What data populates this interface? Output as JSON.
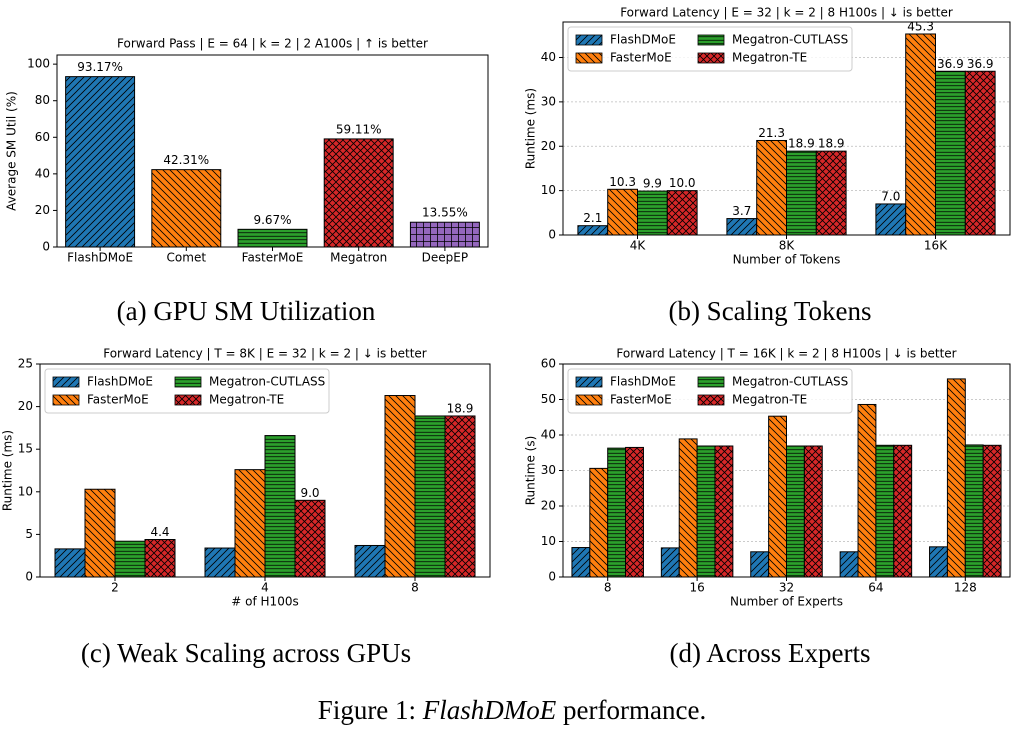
{
  "chart_data": [
    {
      "type": "bar",
      "title": "Forward Pass | E = 64 | k = 2 | 2 A100s | ↑ is better",
      "caption": "(a) GPU SM Utilization",
      "ylabel": "Average SM Util (%)",
      "categories": [
        "FlashDMoE",
        "Comet",
        "FasterMoE",
        "Megatron",
        "DeepEP"
      ],
      "values": [
        93.17,
        42.31,
        9.67,
        59.11,
        13.55
      ],
      "value_labels": [
        "93.17%",
        "42.31%",
        "9.67%",
        "59.11%",
        "13.55%"
      ],
      "colors": [
        "#1f77b4",
        "#ff7f0e",
        "#2ca02c",
        "#d62728",
        "#9467bd"
      ],
      "hatches": [
        "diag",
        "back",
        "horiz",
        "cross",
        "grid"
      ],
      "ylim": [
        0,
        105
      ],
      "yticks": [
        0,
        20,
        40,
        60,
        80,
        100
      ],
      "grid": false
    },
    {
      "type": "grouped_bar",
      "title": "Forward Latency | E = 32 | k = 2 | 8 H100s | ↓ is better",
      "caption": "(b) Scaling Tokens",
      "xlabel": "Number of Tokens",
      "ylabel": "Runtime (ms)",
      "categories": [
        "4K",
        "8K",
        "16K"
      ],
      "series": [
        {
          "name": "FlashDMoE",
          "color": "#1f77b4",
          "hatch": "diag",
          "values": [
            2.1,
            3.7,
            7.0
          ],
          "value_labels": [
            "2.1",
            "3.7",
            "7.0"
          ]
        },
        {
          "name": "FasterMoE",
          "color": "#ff7f0e",
          "hatch": "back",
          "values": [
            10.3,
            21.3,
            45.3
          ],
          "value_labels": [
            "10.3",
            "21.3",
            "45.3"
          ]
        },
        {
          "name": "Megatron-CUTLASS",
          "color": "#2ca02c",
          "hatch": "horiz",
          "values": [
            9.9,
            18.9,
            36.9
          ],
          "value_labels": [
            "9.9",
            "18.9",
            "36.9"
          ]
        },
        {
          "name": "Megatron-TE",
          "color": "#d62728",
          "hatch": "cross",
          "values": [
            10.0,
            18.9,
            36.9
          ],
          "value_labels": [
            "10.0",
            "18.9",
            "36.9"
          ]
        }
      ],
      "ylim": [
        0,
        48
      ],
      "yticks": [
        0,
        10,
        20,
        30,
        40
      ],
      "grid": true,
      "legend": "upper left"
    },
    {
      "type": "grouped_bar",
      "title": "Forward Latency | T = 8K | E = 32 | k = 2 | ↓ is better",
      "caption": "(c) Weak Scaling across GPUs",
      "xlabel": "# of H100s",
      "ylabel": "Runtime (ms)",
      "categories": [
        "2",
        "4",
        "8"
      ],
      "series": [
        {
          "name": "FlashDMoE",
          "color": "#1f77b4",
          "hatch": "diag",
          "values": [
            3.3,
            3.4,
            3.7
          ]
        },
        {
          "name": "FasterMoE",
          "color": "#ff7f0e",
          "hatch": "back",
          "values": [
            10.3,
            12.6,
            21.3
          ]
        },
        {
          "name": "Megatron-CUTLASS",
          "color": "#2ca02c",
          "hatch": "horiz",
          "values": [
            4.2,
            16.6,
            18.9
          ]
        },
        {
          "name": "Megatron-TE",
          "color": "#d62728",
          "hatch": "cross",
          "values": [
            4.4,
            9.0,
            18.9
          ],
          "value_labels": [
            "4.4",
            "9.0",
            "18.9"
          ]
        }
      ],
      "ylim": [
        0,
        25
      ],
      "yticks": [
        0,
        5,
        10,
        15,
        20,
        25
      ],
      "grid": false,
      "legend": "upper left"
    },
    {
      "type": "grouped_bar",
      "title": "Forward Latency | T = 16K | k = 2 | 8 H100s | ↓ is better",
      "caption": "(d) Across Experts",
      "xlabel": "Number of Experts",
      "ylabel": "Runtime (s)",
      "categories": [
        "8",
        "16",
        "32",
        "64",
        "128"
      ],
      "series": [
        {
          "name": "FlashDMoE",
          "color": "#1f77b4",
          "hatch": "diag",
          "values": [
            8.3,
            8.2,
            7.1,
            7.1,
            8.5
          ]
        },
        {
          "name": "FasterMoE",
          "color": "#ff7f0e",
          "hatch": "back",
          "values": [
            30.6,
            38.9,
            45.3,
            48.6,
            55.8
          ]
        },
        {
          "name": "Megatron-CUTLASS",
          "color": "#2ca02c",
          "hatch": "horiz",
          "values": [
            36.3,
            36.9,
            36.9,
            37.1,
            37.2
          ]
        },
        {
          "name": "Megatron-TE",
          "color": "#d62728",
          "hatch": "cross",
          "values": [
            36.5,
            36.9,
            36.9,
            37.1,
            37.1
          ]
        }
      ],
      "ylim": [
        0,
        60
      ],
      "yticks": [
        0,
        10,
        20,
        30,
        40,
        50,
        60
      ],
      "grid": true,
      "legend": "upper left"
    }
  ],
  "figure_caption": {
    "prefix": "Figure 1:",
    "emphasis": "FlashDMoE",
    "suffix": "performance."
  }
}
